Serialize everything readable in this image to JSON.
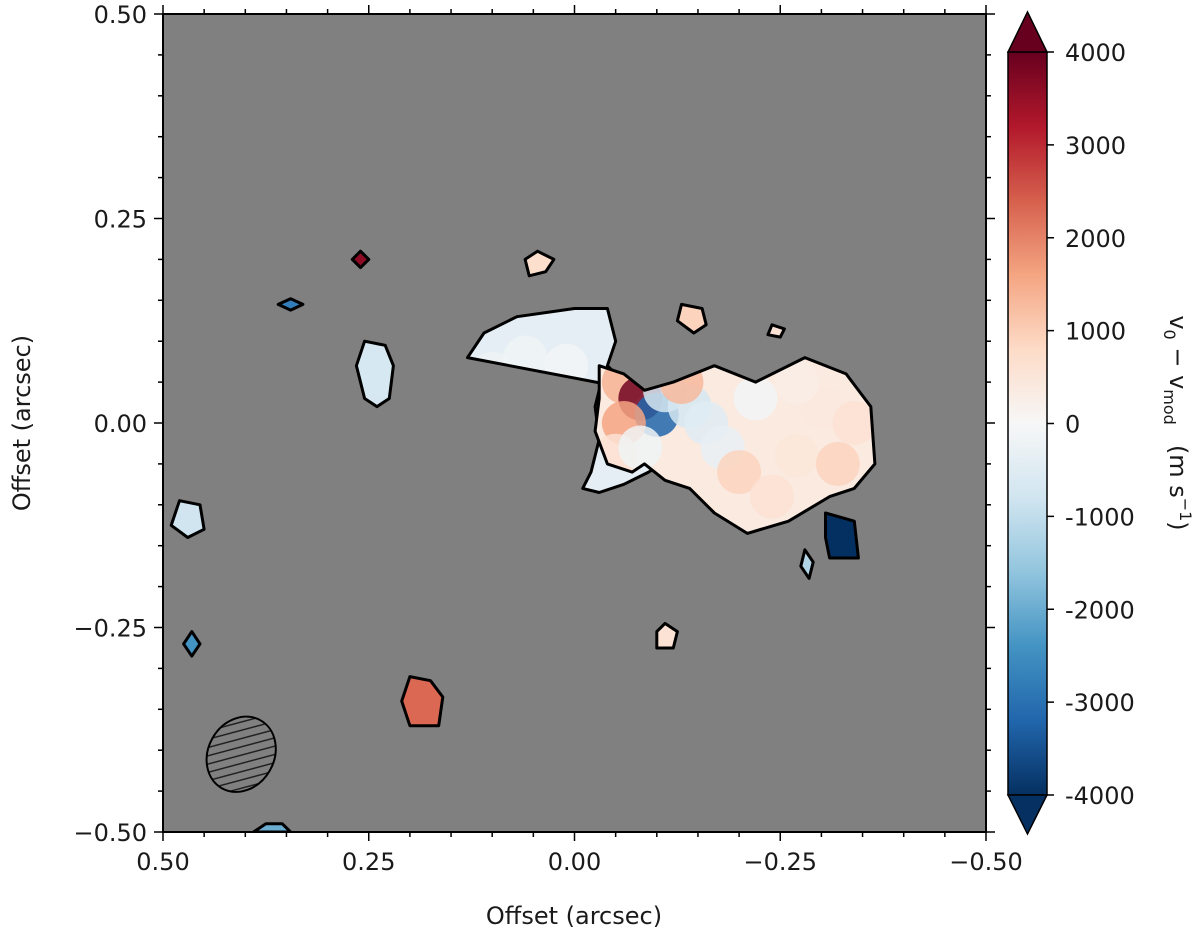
{
  "chart_data": {
    "type": "heatmap",
    "title": "",
    "xlabel": "Offset (arcsec)",
    "ylabel": "Offset (arcsec)",
    "xlim": [
      0.5,
      -0.5
    ],
    "ylim": [
      -0.5,
      0.5
    ],
    "x_ticks": [
      {
        "value": 0.5,
        "label": "0.50"
      },
      {
        "value": 0.25,
        "label": "0.25"
      },
      {
        "value": 0.0,
        "label": "0.00"
      },
      {
        "value": -0.25,
        "label": "−0.25"
      },
      {
        "value": -0.5,
        "label": "−0.50"
      }
    ],
    "y_ticks": [
      {
        "value": 0.5,
        "label": "0.50"
      },
      {
        "value": 0.25,
        "label": "0.25"
      },
      {
        "value": 0.0,
        "label": "0.00"
      },
      {
        "value": -0.25,
        "label": "−0.25"
      },
      {
        "value": -0.5,
        "label": "−0.50"
      }
    ],
    "background_color": "#808080",
    "colorbar": {
      "label_main": "v",
      "label_sub1": "0",
      "label_minus": " − v",
      "label_sub2": "mod",
      "label_unit": "(m s",
      "label_unit_sup": "−1",
      "label_unit_close": ")",
      "cmap": "RdBu_r",
      "vmin": -4000,
      "vmax": 4000,
      "extend": "both",
      "ticks": [
        {
          "value": 4000,
          "label": "4000"
        },
        {
          "value": 3000,
          "label": "3000"
        },
        {
          "value": 2000,
          "label": "2000"
        },
        {
          "value": 1000,
          "label": "1000"
        },
        {
          "value": 0,
          "label": "0"
        },
        {
          "value": -1000,
          "label": "-1000"
        },
        {
          "value": -2000,
          "label": "-2000"
        },
        {
          "value": -3000,
          "label": "-3000"
        },
        {
          "value": -4000,
          "label": "-4000"
        }
      ],
      "colors": [
        "#053061",
        "#2166ac",
        "#4393c3",
        "#92c5de",
        "#d1e5f0",
        "#f7f7f7",
        "#fddbc7",
        "#f4a582",
        "#d6604d",
        "#b2182b",
        "#67001f"
      ]
    },
    "beam": {
      "x": 0.405,
      "y": -0.405,
      "major_arcsec": 0.095,
      "minor_arcsec": 0.08,
      "pa_deg": 30
    },
    "regions": [
      {
        "name": "west-lobe",
        "outline": [
          [
            0.13,
            0.08
          ],
          [
            0.11,
            0.11
          ],
          [
            0.07,
            0.13
          ],
          [
            0.0,
            0.14
          ],
          [
            -0.04,
            0.14
          ],
          [
            -0.05,
            0.1
          ],
          [
            -0.04,
            0.07
          ],
          [
            -0.06,
            0.05
          ],
          [
            -0.03,
            0.04
          ],
          [
            -0.025,
            0.02
          ],
          [
            -0.03,
            -0.02
          ],
          [
            -0.02,
            -0.06
          ],
          [
            -0.01,
            -0.08
          ],
          [
            -0.03,
            -0.085
          ],
          [
            -0.06,
            -0.075
          ],
          [
            -0.09,
            -0.06
          ],
          [
            -0.12,
            -0.04
          ],
          [
            -0.13,
            -0.01
          ],
          [
            -0.13,
            0.03
          ]
        ],
        "pixels": [
          [
            0.1,
            0.06,
            -200
          ],
          [
            0.06,
            0.08,
            -150
          ],
          [
            0.02,
            0.04,
            -300
          ],
          [
            0.08,
            0.02,
            -250
          ],
          [
            0.04,
            -0.02,
            -500
          ],
          [
            0.06,
            -0.04,
            -900
          ],
          [
            0.03,
            -0.06,
            -1300
          ],
          [
            0.0,
            -0.04,
            -900
          ],
          [
            0.1,
            -0.02,
            -300
          ],
          [
            0.02,
            0.0,
            -200
          ],
          [
            0.0,
            0.02,
            300
          ],
          [
            0.01,
            0.07,
            -100
          ]
        ]
      },
      {
        "name": "central-lobe",
        "outline": [
          [
            -0.03,
            0.07
          ],
          [
            -0.06,
            0.06
          ],
          [
            -0.085,
            0.04
          ],
          [
            -0.12,
            0.05
          ],
          [
            -0.17,
            0.07
          ],
          [
            -0.22,
            0.05
          ],
          [
            -0.28,
            0.08
          ],
          [
            -0.33,
            0.06
          ],
          [
            -0.36,
            0.02
          ],
          [
            -0.365,
            -0.05
          ],
          [
            -0.34,
            -0.08
          ],
          [
            -0.31,
            -0.09
          ],
          [
            -0.26,
            -0.12
          ],
          [
            -0.21,
            -0.135
          ],
          [
            -0.17,
            -0.11
          ],
          [
            -0.14,
            -0.08
          ],
          [
            -0.11,
            -0.07
          ],
          [
            -0.085,
            -0.05
          ],
          [
            -0.07,
            -0.06
          ],
          [
            -0.04,
            -0.05
          ],
          [
            -0.025,
            -0.01
          ],
          [
            -0.03,
            0.03
          ]
        ],
        "pixels": [
          [
            -0.06,
            0.05,
            1400
          ],
          [
            -0.08,
            0.03,
            3900
          ],
          [
            -0.1,
            0.01,
            -3200
          ],
          [
            -0.11,
            0.04,
            -700
          ],
          [
            -0.06,
            0.0,
            1600
          ],
          [
            -0.05,
            -0.04,
            600
          ],
          [
            -0.08,
            -0.03,
            -200
          ],
          [
            -0.14,
            0.02,
            -700
          ],
          [
            -0.16,
            0.0,
            -500
          ],
          [
            -0.18,
            -0.03,
            -300
          ],
          [
            -0.13,
            0.05,
            1300
          ],
          [
            -0.2,
            -0.06,
            900
          ],
          [
            -0.24,
            -0.09,
            600
          ],
          [
            -0.27,
            -0.04,
            500
          ],
          [
            -0.3,
            0.02,
            400
          ],
          [
            -0.34,
            0.0,
            600
          ],
          [
            -0.32,
            -0.05,
            900
          ],
          [
            -0.27,
            0.05,
            300
          ],
          [
            -0.22,
            0.03,
            -100
          ]
        ]
      },
      {
        "name": "north-arc-blob-1",
        "outline": [
          [
            0.06,
            0.2
          ],
          [
            0.045,
            0.21
          ],
          [
            0.025,
            0.2
          ],
          [
            0.035,
            0.185
          ],
          [
            0.055,
            0.18
          ]
        ],
        "pixels": [
          [
            0.045,
            0.197,
            700
          ]
        ]
      },
      {
        "name": "north-blob-2",
        "outline": [
          [
            -0.13,
            0.145
          ],
          [
            -0.155,
            0.14
          ],
          [
            -0.16,
            0.12
          ],
          [
            -0.145,
            0.11
          ],
          [
            -0.125,
            0.125
          ]
        ],
        "pixels": [
          [
            -0.143,
            0.127,
            900
          ]
        ]
      },
      {
        "name": "north-blob-3",
        "outline": [
          [
            -0.24,
            0.12
          ],
          [
            -0.255,
            0.115
          ],
          [
            -0.25,
            0.105
          ],
          [
            -0.235,
            0.108
          ]
        ],
        "pixels": [
          [
            -0.245,
            0.113,
            600
          ]
        ]
      },
      {
        "name": "east-blob-1",
        "outline": [
          [
            0.23,
            0.095
          ],
          [
            0.255,
            0.1
          ],
          [
            0.265,
            0.07
          ],
          [
            0.255,
            0.03
          ],
          [
            0.24,
            0.02
          ],
          [
            0.225,
            0.03
          ],
          [
            0.22,
            0.07
          ]
        ],
        "pixels": [
          [
            0.245,
            0.06,
            -700
          ]
        ]
      },
      {
        "name": "red-dot-north",
        "outline": [
          [
            0.26,
            0.21
          ],
          [
            0.25,
            0.2
          ],
          [
            0.26,
            0.19
          ],
          [
            0.27,
            0.2
          ]
        ],
        "pixels": [
          [
            0.26,
            0.2,
            3600
          ]
        ]
      },
      {
        "name": "blue-dot-north",
        "outline": [
          [
            0.345,
            0.152
          ],
          [
            0.33,
            0.145
          ],
          [
            0.345,
            0.138
          ],
          [
            0.36,
            0.145
          ]
        ],
        "pixels": [
          [
            0.345,
            0.145,
            -2800
          ]
        ]
      },
      {
        "name": "east-edge-blob",
        "outline": [
          [
            0.48,
            -0.095
          ],
          [
            0.455,
            -0.1
          ],
          [
            0.45,
            -0.13
          ],
          [
            0.47,
            -0.14
          ],
          [
            0.49,
            -0.125
          ]
        ],
        "pixels": [
          [
            0.47,
            -0.118,
            -800
          ]
        ]
      },
      {
        "name": "south-dot",
        "outline": [
          [
            0.465,
            -0.255
          ],
          [
            0.455,
            -0.27
          ],
          [
            0.465,
            -0.285
          ],
          [
            0.475,
            -0.27
          ]
        ],
        "pixels": [
          [
            0.465,
            -0.27,
            -2400
          ]
        ]
      },
      {
        "name": "red-blob-south",
        "outline": [
          [
            0.2,
            -0.31
          ],
          [
            0.175,
            -0.315
          ],
          [
            0.16,
            -0.335
          ],
          [
            0.165,
            -0.37
          ],
          [
            0.2,
            -0.37
          ],
          [
            0.21,
            -0.34
          ]
        ],
        "pixels": [
          [
            0.185,
            -0.345,
            2300
          ]
        ]
      },
      {
        "name": "south-blob-2",
        "outline": [
          [
            -0.11,
            -0.245
          ],
          [
            -0.125,
            -0.255
          ],
          [
            -0.12,
            -0.275
          ],
          [
            -0.1,
            -0.275
          ],
          [
            -0.1,
            -0.255
          ]
        ],
        "pixels": [
          [
            -0.112,
            -0.262,
            600
          ]
        ]
      },
      {
        "name": "southwest-dark-blob",
        "outline": [
          [
            -0.305,
            -0.11
          ],
          [
            -0.34,
            -0.12
          ],
          [
            -0.345,
            -0.165
          ],
          [
            -0.31,
            -0.165
          ],
          [
            -0.305,
            -0.14
          ]
        ],
        "pixels": [
          [
            -0.325,
            -0.14,
            -4200
          ]
        ]
      },
      {
        "name": "southwest-dot",
        "outline": [
          [
            -0.28,
            -0.155
          ],
          [
            -0.29,
            -0.17
          ],
          [
            -0.285,
            -0.19
          ],
          [
            -0.275,
            -0.175
          ]
        ],
        "pixels": [
          [
            -0.282,
            -0.173,
            -1200
          ]
        ]
      },
      {
        "name": "bottom-edge-blob",
        "outline": [
          [
            0.39,
            -0.5
          ],
          [
            0.375,
            -0.49
          ],
          [
            0.355,
            -0.49
          ],
          [
            0.345,
            -0.5
          ]
        ],
        "pixels": [
          [
            0.37,
            -0.497,
            -2000
          ]
        ]
      }
    ]
  }
}
